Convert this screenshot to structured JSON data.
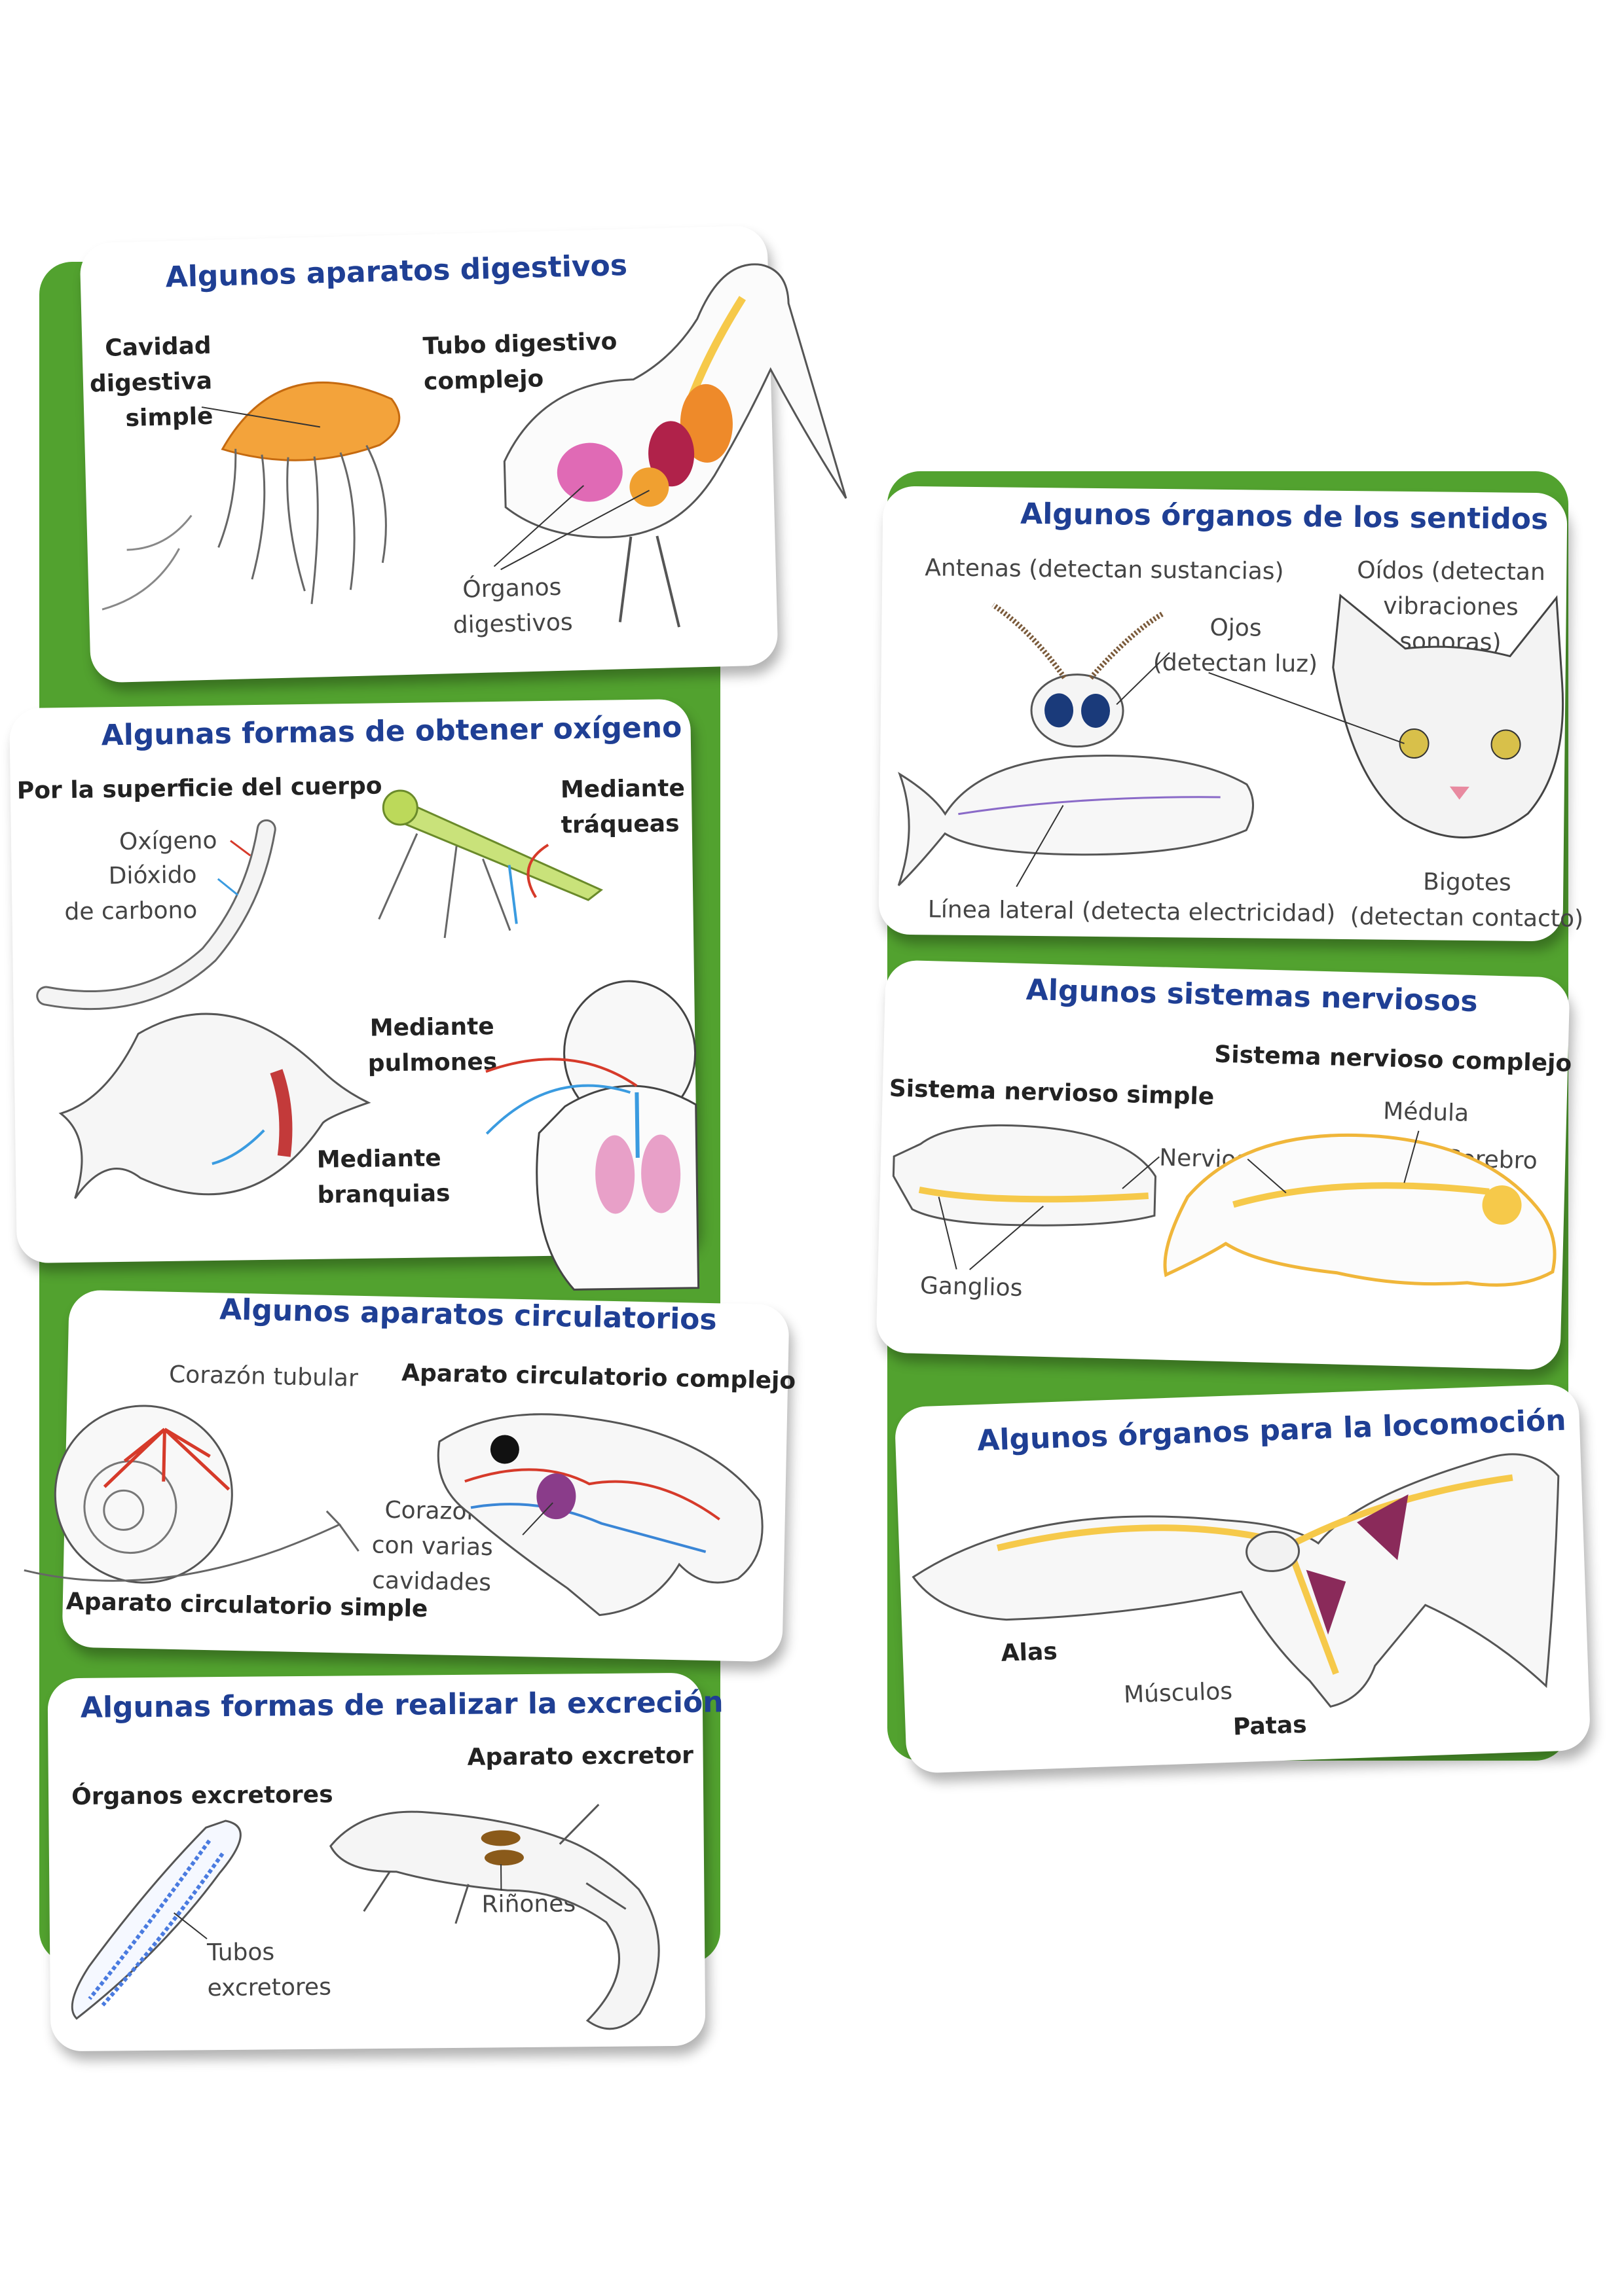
{
  "colors": {
    "panel_green": "#52a22f",
    "title_blue": "#1f3f94",
    "nerve_yellow": "#f6c94a",
    "blood_red": "#d63a2a",
    "vein_blue": "#3a86d6"
  },
  "digestive": {
    "title": "Algunos aparatos digestivos",
    "simple": "Cavidad\ndigestiva\nsimple",
    "complex": "Tubo digestivo\ncomplejo",
    "organs": "Órganos\ndigestivos"
  },
  "oxygen": {
    "title": "Algunas formas de obtener oxígeno",
    "body_surface": "Por la superficie del cuerpo",
    "oxygen": "Oxígeno",
    "co2": "Dióxido\nde carbono",
    "tracheae": "Mediante\ntráqueas",
    "lungs": "Mediante\npulmones",
    "gills": "Mediante\nbranquias"
  },
  "circulatory": {
    "title": "Algunos aparatos circulatorios",
    "tubular_heart": "Corazón tubular",
    "complex": "Aparato circulatorio complejo",
    "heart_cavities": "Corazón\ncon varias\ncavidades",
    "simple": "Aparato circulatorio simple"
  },
  "excretion": {
    "title": "Algunas formas de realizar la excreción",
    "organs": "Órganos excretores",
    "system": "Aparato excretor",
    "tubes": "Tubos\nexcretores",
    "kidneys": "Riñones"
  },
  "senses": {
    "title": "Algunos órganos de los sentidos",
    "antennae": "Antenas (detectan sustancias)",
    "eyes": "Ojos\n(detectan luz)",
    "ears": "Oídos (detectan\nvibraciones\nsonoras)",
    "lateral_line": "Línea lateral (detecta electricidad)",
    "whiskers": "Bigotes\n(detectan contacto)"
  },
  "nervous": {
    "title": "Algunos sistemas nerviosos",
    "simple": "Sistema nervioso simple",
    "complex": "Sistema nervioso complejo",
    "spinal_cord": "Médula",
    "nerves": "Nervios",
    "brain": "Cerebro",
    "ganglia": "Ganglios"
  },
  "locomotion": {
    "title": "Algunos órganos para la locomoción",
    "wings": "Alas",
    "muscles": "Músculos",
    "legs": "Patas"
  }
}
